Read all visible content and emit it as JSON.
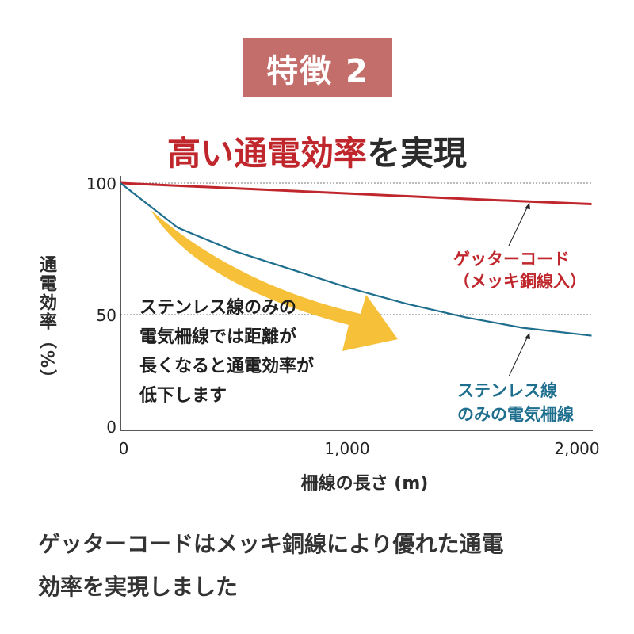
{
  "badge": "特徴 2",
  "headline": {
    "highlight": "高い通電効率",
    "rest": "を実現"
  },
  "chart_data": {
    "type": "line",
    "title": "",
    "xlabel": "柵線の長さ (m)",
    "ylabel": "通電効率（%）",
    "xlim": [
      0,
      2150
    ],
    "ylim": [
      0,
      100
    ],
    "xticks": [
      {
        "value": 0,
        "label": "0"
      },
      {
        "value": 1000,
        "label": "1,000"
      },
      {
        "value": 2000,
        "label": "2,000"
      }
    ],
    "yticks": [
      {
        "value": 0,
        "label": "0"
      },
      {
        "value": 50,
        "label": "50"
      },
      {
        "value": 100,
        "label": "100"
      }
    ],
    "gridlines": [
      50,
      100
    ],
    "series": [
      {
        "name": "ゲッターコード（メッキ銅線入）",
        "color": "#c0272d",
        "x": [
          0,
          500,
          1000,
          1500,
          2050
        ],
        "y": [
          100,
          98,
          96,
          94,
          92
        ]
      },
      {
        "name": "ステンレス線のみの電気柵線",
        "color": "#1e6e8e",
        "x": [
          0,
          250,
          500,
          750,
          1000,
          1250,
          1500,
          1750,
          2050
        ],
        "y": [
          100,
          83,
          74,
          67,
          60,
          54,
          49,
          45,
          42
        ]
      }
    ],
    "annotation": {
      "lines": [
        "ステンレス線のみの",
        "電気柵線では距離が",
        "長くなると通電効率が",
        "低下します"
      ],
      "arrow_color": "#f5bd2e"
    },
    "labels": {
      "red": [
        "ゲッターコード",
        "（メッキ銅線入）"
      ],
      "blue": [
        "ステンレス線",
        "のみの電気柵線"
      ]
    }
  },
  "footer": [
    "ゲッターコードはメッキ銅線により優れた通電",
    "効率を実現しました"
  ]
}
